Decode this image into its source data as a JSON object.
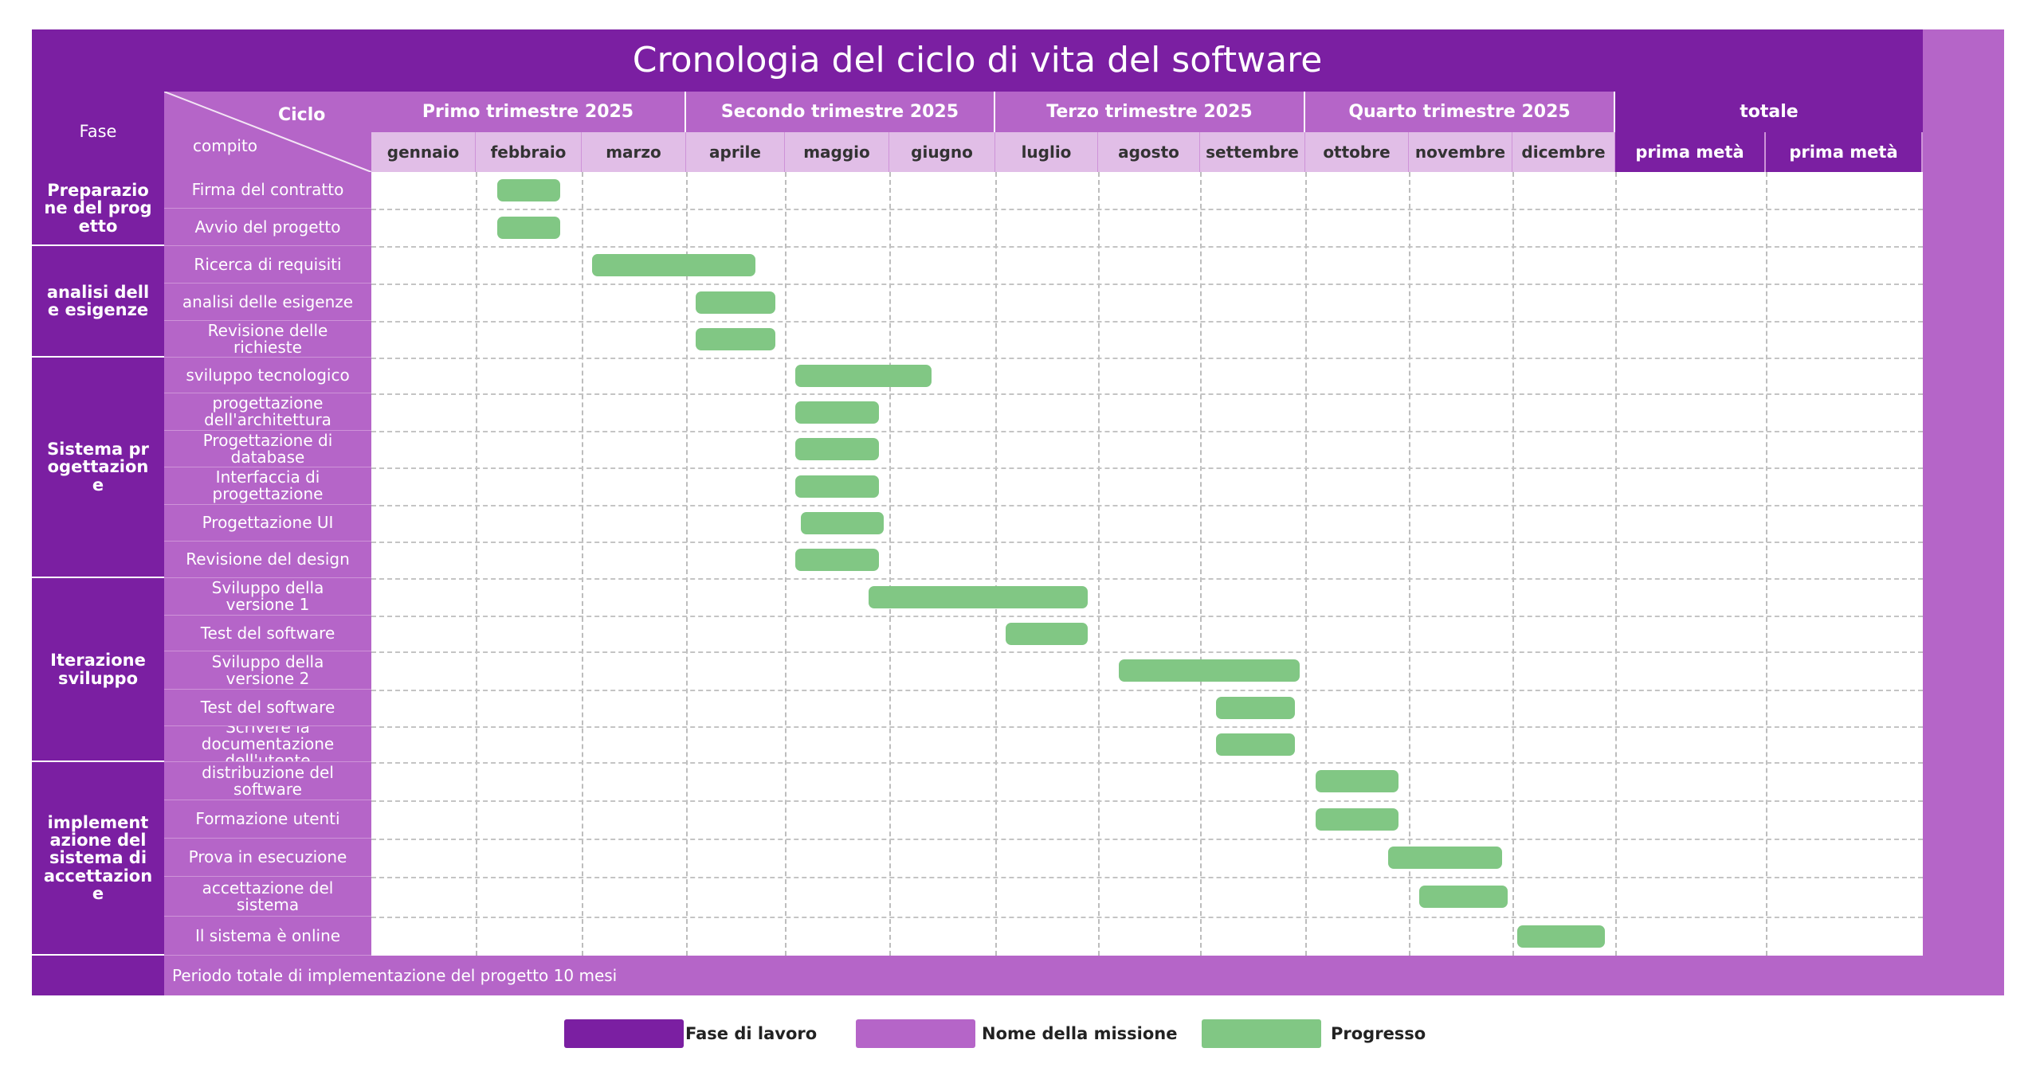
{
  "title": "Cronologia del ciclo di vita del software",
  "header": {
    "fase": "Fase",
    "ciclo": "Ciclo",
    "compito": "compito",
    "quarters": [
      "Primo trimestre 2025",
      "Secondo trimestre 2025",
      "Terzo trimestre 2025",
      "Quarto trimestre 2025"
    ],
    "months": [
      "gennaio",
      "febbraio",
      "marzo",
      "aprile",
      "maggio",
      "giugno",
      "luglio",
      "agosto",
      "settembre",
      "ottobre",
      "novembre",
      "dicembre"
    ],
    "total": "totale",
    "halves": [
      "prima metà",
      "prima metà"
    ]
  },
  "phases": [
    "Preparazione del progetto",
    "analisi delle esigenze",
    "Sistema progettazione",
    "Iterazione sviluppo",
    "implementazione del sistema di accettazione"
  ],
  "tasks": [
    "Firma del contratto",
    "Avvio del progetto",
    "Ricerca di requisiti",
    "analisi delle esigenze",
    "Revisione delle richieste",
    "sviluppo tecnologico",
    "progettazione dell'architettura",
    "Progettazione di database",
    "Interfaccia di progettazione",
    "Progettazione UI",
    "Revisione del design",
    "Sviluppo della versione 1",
    "Test del software",
    "Sviluppo della versione 2",
    "Test del software",
    "Scrivere la documentazione dell'utente",
    "distribuzione del software",
    "Formazione utenti",
    "Prova in esecuzione",
    "accettazione del sistema",
    "Il sistema è online"
  ],
  "schedule": [
    {
      "start": 2.2,
      "end": 2.8
    },
    {
      "start": 2.2,
      "end": 2.8
    },
    {
      "start": 3.1,
      "end": 4.7
    },
    {
      "start": 4.1,
      "end": 4.9
    },
    {
      "start": 4.1,
      "end": 4.9
    },
    {
      "start": 5.1,
      "end": 6.4
    },
    {
      "start": 5.1,
      "end": 5.9
    },
    {
      "start": 5.1,
      "end": 5.9
    },
    {
      "start": 5.1,
      "end": 5.9
    },
    {
      "start": 5.15,
      "end": 5.95
    },
    {
      "start": 5.1,
      "end": 5.9
    },
    {
      "start": 5.8,
      "end": 7.9
    },
    {
      "start": 7.1,
      "end": 7.9
    },
    {
      "start": 8.2,
      "end": 9.95
    },
    {
      "start": 9.15,
      "end": 9.9
    },
    {
      "start": 9.15,
      "end": 9.9
    },
    {
      "start": 10.1,
      "end": 10.9
    },
    {
      "start": 10.1,
      "end": 10.9
    },
    {
      "start": 10.8,
      "end": 11.9
    },
    {
      "start": 11.1,
      "end": 11.95
    },
    {
      "start": 12.05,
      "end": 12.9
    }
  ],
  "footer": "Periodo totale di implementazione del progetto 10 mesi",
  "legend": [
    {
      "label": "Fase di lavoro",
      "color": "#7b1fa2"
    },
    {
      "label": "Nome della missione",
      "color": "#b565c8"
    },
    {
      "label": "Progresso",
      "color": "#81c784"
    }
  ],
  "colors": {
    "phase": "#7b1fa2",
    "task": "#b565c8",
    "month": "#e1bee7",
    "progress": "#81c784"
  }
}
